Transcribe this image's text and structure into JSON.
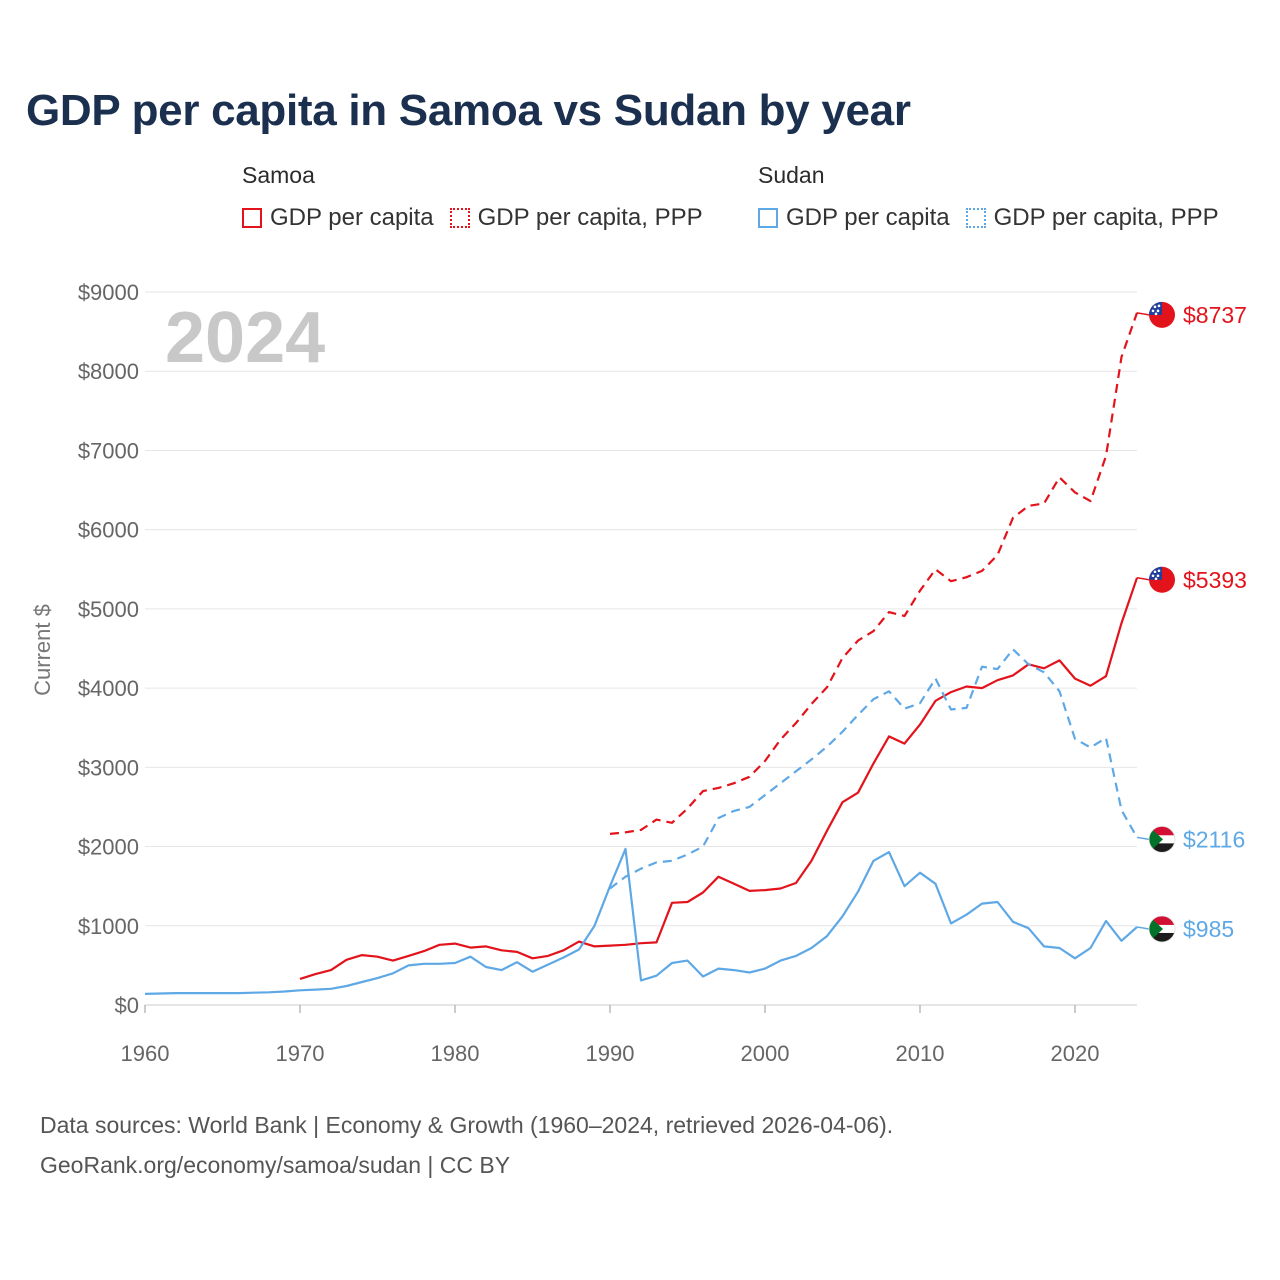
{
  "title": "GDP per capita in Samoa vs Sudan by year",
  "legend": {
    "groups": [
      {
        "name": "Samoa",
        "items": [
          {
            "label": "GDP per capita",
            "color": "#e3131b",
            "style": "solid"
          },
          {
            "label": "GDP per capita, PPP",
            "color": "#e3131b",
            "style": "dotted"
          }
        ]
      },
      {
        "name": "Sudan",
        "items": [
          {
            "label": "GDP per capita",
            "color": "#5fa8e6",
            "style": "solid"
          },
          {
            "label": "GDP per capita, PPP",
            "color": "#5fa8e6",
            "style": "dotted"
          }
        ]
      }
    ]
  },
  "chart_data": {
    "type": "line",
    "year_watermark": "2024",
    "ylabel": "Current $",
    "xlim": [
      1960,
      2024
    ],
    "ylim": [
      0,
      9000
    ],
    "x_ticks": [
      1960,
      1970,
      1980,
      1990,
      2000,
      2010,
      2020
    ],
    "x_tick_labels": [
      "1960",
      "1970",
      "1980",
      "1990",
      "2000",
      "2010",
      "2020"
    ],
    "y_ticks": [
      0,
      1000,
      2000,
      3000,
      4000,
      5000,
      6000,
      7000,
      8000,
      9000
    ],
    "y_tick_labels": [
      "$0",
      "$1000",
      "$2000",
      "$3000",
      "$4000",
      "$5000",
      "$6000",
      "$7000",
      "$8000",
      "$9000"
    ],
    "grid": true,
    "series": [
      {
        "name": "Samoa GDP per capita",
        "color": "#e3131b",
        "dash": "solid",
        "end_label": "$5393",
        "flag": "samoa",
        "x": [
          1970,
          1971,
          1972,
          1973,
          1974,
          1975,
          1976,
          1977,
          1978,
          1979,
          1980,
          1981,
          1982,
          1983,
          1984,
          1985,
          1986,
          1987,
          1988,
          1989,
          1990,
          1991,
          1992,
          1993,
          1994,
          1995,
          1996,
          1997,
          1998,
          1999,
          2000,
          2001,
          2002,
          2003,
          2004,
          2005,
          2006,
          2007,
          2008,
          2009,
          2010,
          2011,
          2012,
          2013,
          2014,
          2015,
          2016,
          2017,
          2018,
          2019,
          2020,
          2021,
          2022,
          2023,
          2024
        ],
        "y": [
          330,
          390,
          440,
          570,
          630,
          610,
          560,
          620,
          680,
          760,
          775,
          725,
          740,
          690,
          670,
          590,
          620,
          690,
          800,
          740,
          750,
          760,
          780,
          790,
          1290,
          1300,
          1420,
          1620,
          1530,
          1440,
          1450,
          1470,
          1540,
          1820,
          2200,
          2560,
          2680,
          3050,
          3390,
          3300,
          3540,
          3840,
          3950,
          4020,
          4000,
          4100,
          4160,
          4300,
          4250,
          4350,
          4120,
          4030,
          4150,
          4820,
          5393
        ]
      },
      {
        "name": "Samoa GDP per capita, PPP",
        "color": "#e3131b",
        "dash": "dotted",
        "end_label": "$8737",
        "flag": "samoa",
        "x": [
          1990,
          1991,
          1992,
          1993,
          1994,
          1995,
          1996,
          1997,
          1998,
          1999,
          2000,
          2001,
          2002,
          2003,
          2004,
          2005,
          2006,
          2007,
          2008,
          2009,
          2010,
          2011,
          2012,
          2013,
          2014,
          2015,
          2016,
          2017,
          2018,
          2019,
          2020,
          2021,
          2022,
          2023,
          2024
        ],
        "y": [
          2160,
          2180,
          2210,
          2340,
          2300,
          2480,
          2700,
          2740,
          2800,
          2880,
          3080,
          3350,
          3560,
          3800,
          4010,
          4380,
          4600,
          4720,
          4960,
          4910,
          5230,
          5500,
          5350,
          5400,
          5480,
          5680,
          6150,
          6300,
          6330,
          6660,
          6470,
          6360,
          6930,
          8180,
          8737
        ]
      },
      {
        "name": "Sudan GDP per capita",
        "color": "#5fa8e6",
        "dash": "solid",
        "end_label": "$985",
        "flag": "sudan",
        "x": [
          1960,
          1961,
          1962,
          1963,
          1964,
          1965,
          1966,
          1967,
          1968,
          1969,
          1970,
          1971,
          1972,
          1973,
          1974,
          1975,
          1976,
          1977,
          1978,
          1979,
          1980,
          1981,
          1982,
          1983,
          1984,
          1985,
          1986,
          1987,
          1988,
          1989,
          1990,
          1991,
          1992,
          1993,
          1994,
          1995,
          1996,
          1997,
          1998,
          1999,
          2000,
          2001,
          2002,
          2003,
          2004,
          2005,
          2006,
          2007,
          2008,
          2009,
          2010,
          2011,
          2012,
          2013,
          2014,
          2015,
          2016,
          2017,
          2018,
          2019,
          2020,
          2021,
          2022,
          2023,
          2024
        ],
        "y": [
          140,
          145,
          150,
          150,
          150,
          150,
          150,
          155,
          160,
          170,
          185,
          195,
          205,
          240,
          290,
          340,
          400,
          500,
          520,
          520,
          530,
          610,
          480,
          440,
          540,
          420,
          510,
          600,
          700,
          1000,
          1500,
          1970,
          310,
          370,
          530,
          560,
          360,
          460,
          440,
          410,
          460,
          560,
          620,
          720,
          870,
          1120,
          1430,
          1820,
          1930,
          1500,
          1670,
          1530,
          1030,
          1140,
          1280,
          1300,
          1050,
          970,
          740,
          720,
          590,
          720,
          1060,
          810,
          985
        ]
      },
      {
        "name": "Sudan GDP per capita, PPP",
        "color": "#5fa8e6",
        "dash": "dotted",
        "end_label": "$2116",
        "flag": "sudan",
        "x": [
          1990,
          1991,
          1992,
          1993,
          1994,
          1995,
          1996,
          1997,
          1998,
          1999,
          2000,
          2001,
          2002,
          2003,
          2004,
          2005,
          2006,
          2007,
          2008,
          2009,
          2010,
          2011,
          2012,
          2013,
          2014,
          2015,
          2016,
          2017,
          2018,
          2019,
          2020,
          2021,
          2022,
          2023,
          2024
        ],
        "y": [
          1470,
          1620,
          1720,
          1800,
          1820,
          1900,
          2000,
          2360,
          2450,
          2500,
          2650,
          2800,
          2950,
          3100,
          3260,
          3450,
          3660,
          3860,
          3960,
          3740,
          3810,
          4120,
          3730,
          3750,
          4270,
          4240,
          4490,
          4300,
          4200,
          3960,
          3360,
          3250,
          3370,
          2460,
          2116
        ]
      }
    ]
  },
  "footer": {
    "line1": "Data sources: World Bank | Economy & Growth (1960–2024, retrieved 2026-04-06).",
    "line2": "GeoRank.org/economy/samoa/sudan | CC BY"
  }
}
